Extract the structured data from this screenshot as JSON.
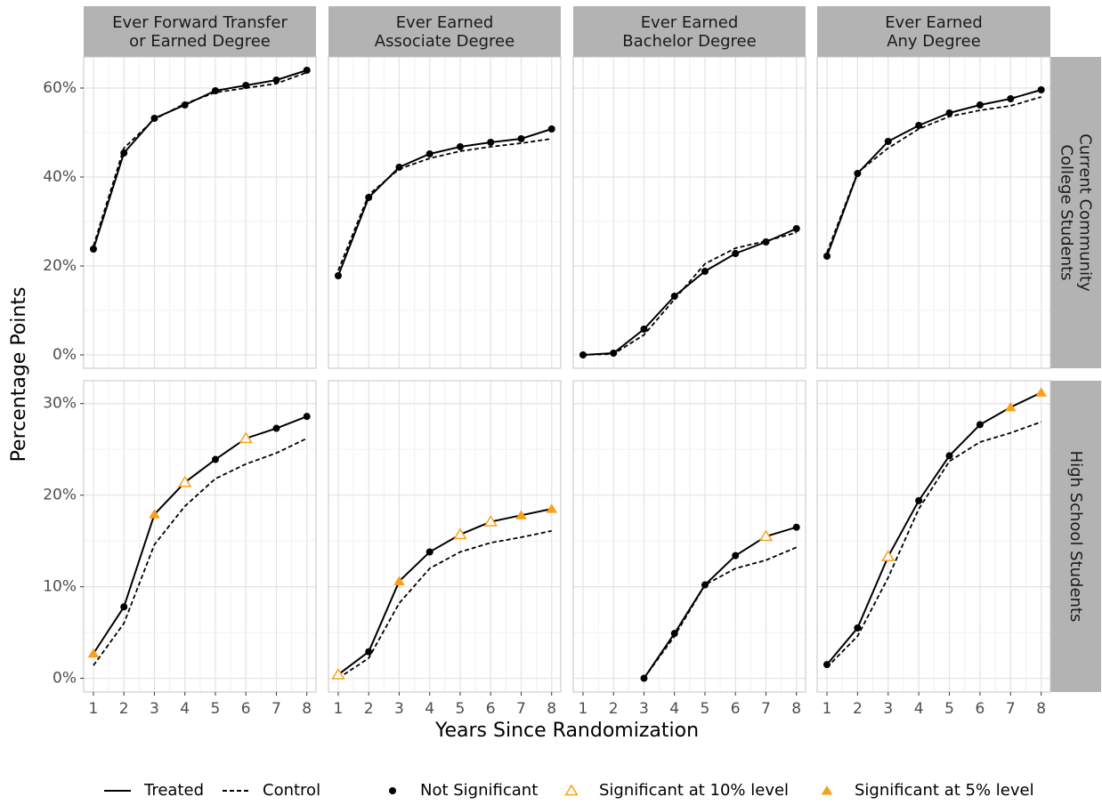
{
  "y_label": "Percentage Points",
  "x_label": "Years Since Randomization",
  "columns": [
    {
      "label": [
        "Ever Forward Transfer",
        "or Earned Degree"
      ]
    },
    {
      "label": [
        "Ever Earned",
        "Associate Degree"
      ]
    },
    {
      "label": [
        "Ever Earned",
        "Bachelor Degree"
      ]
    },
    {
      "label": [
        "Ever Earned",
        "Any Degree"
      ]
    }
  ],
  "rows": [
    {
      "label": [
        "Current Community",
        "College Students"
      ],
      "ylim": [
        -3,
        67
      ],
      "yticks": [
        {
          "value": 0,
          "label": "0%"
        },
        {
          "value": 20,
          "label": "20%"
        },
        {
          "value": 40,
          "label": "40%"
        },
        {
          "value": 60,
          "label": "60%"
        }
      ]
    },
    {
      "label": [
        "High School Students"
      ],
      "ylim": [
        -1.5,
        32.5
      ],
      "yticks": [
        {
          "value": 0,
          "label": "0%"
        },
        {
          "value": 10,
          "label": "10%"
        },
        {
          "value": 20,
          "label": "20%"
        },
        {
          "value": 30,
          "label": "30%"
        }
      ]
    }
  ],
  "xlim": [
    0.68,
    8.3
  ],
  "xticks": [
    1,
    2,
    3,
    4,
    5,
    6,
    7,
    8
  ],
  "grid": true,
  "accent_color": "#f8a01a",
  "legend": {
    "lines": [
      {
        "name": "Treated",
        "dash": "solid"
      },
      {
        "name": "Control",
        "dash": "dashed"
      }
    ],
    "markers": [
      {
        "name": "Not Significant",
        "shape": "circle"
      },
      {
        "name": "Significant at 10% level",
        "shape": "open-triangle"
      },
      {
        "name": "Significant at 5% level",
        "shape": "filled-triangle"
      }
    ]
  },
  "chart_data": [
    {
      "type": "line",
      "row": 0,
      "column": 0,
      "x": [
        1,
        2,
        3,
        4,
        5,
        6,
        7,
        8
      ],
      "treated": [
        23.8,
        45.4,
        53.2,
        56.2,
        59.4,
        60.6,
        61.8,
        64
      ],
      "control": [
        24.5,
        46.5,
        53,
        56.5,
        59,
        60,
        61,
        63.5
      ],
      "significance": [
        "circle",
        "circle",
        "circle",
        "circle",
        "circle",
        "circle",
        "circle",
        "circle"
      ]
    },
    {
      "type": "line",
      "row": 0,
      "column": 1,
      "x": [
        1,
        2,
        3,
        4,
        5,
        6,
        7,
        8
      ],
      "treated": [
        17.8,
        35.4,
        42.2,
        45.2,
        46.8,
        47.8,
        48.6,
        50.8
      ],
      "control": [
        19,
        36,
        41.8,
        44.2,
        45.8,
        46.8,
        47.6,
        48.6
      ],
      "significance": [
        "circle",
        "circle",
        "circle",
        "circle",
        "circle",
        "circle",
        "circle",
        "circle"
      ]
    },
    {
      "type": "line",
      "row": 0,
      "column": 2,
      "x": [
        1,
        2,
        3,
        4,
        5,
        6,
        7,
        8
      ],
      "treated": [
        0,
        0.4,
        5.8,
        13.2,
        18.8,
        22.8,
        25.4,
        28.4
      ],
      "control": [
        0,
        0.2,
        4.5,
        12.5,
        20.5,
        24,
        25.6,
        27.5
      ],
      "significance": [
        "circle",
        "circle",
        "circle",
        "circle",
        "circle",
        "circle",
        "circle",
        "circle"
      ]
    },
    {
      "type": "line",
      "row": 0,
      "column": 3,
      "x": [
        1,
        2,
        3,
        4,
        5,
        6,
        7,
        8
      ],
      "treated": [
        22.2,
        40.8,
        48,
        51.6,
        54.4,
        56.2,
        57.6,
        59.6
      ],
      "control": [
        23,
        41,
        46.5,
        50.8,
        53.6,
        55,
        56,
        58
      ],
      "significance": [
        "circle",
        "circle",
        "circle",
        "circle",
        "circle",
        "circle",
        "circle",
        "circle"
      ]
    },
    {
      "type": "line",
      "row": 1,
      "column": 0,
      "x": [
        1,
        2,
        3,
        4,
        5,
        6,
        7,
        8
      ],
      "treated": [
        2.7,
        7.8,
        17.9,
        21.4,
        23.9,
        26.2,
        27.3,
        28.6
      ],
      "control": [
        1.4,
        6.0,
        14.6,
        18.8,
        21.8,
        23.4,
        24.6,
        26.2
      ],
      "significance": [
        "filled-triangle",
        "circle",
        "filled-triangle",
        "open-triangle",
        "circle",
        "open-triangle",
        "circle",
        "circle"
      ]
    },
    {
      "type": "line",
      "row": 1,
      "column": 1,
      "x": [
        1,
        2,
        3,
        4,
        5,
        6,
        7,
        8
      ],
      "treated": [
        0.4,
        2.9,
        10.6,
        13.8,
        15.7,
        17.1,
        17.8,
        18.5
      ],
      "control": [
        0,
        2.2,
        8.2,
        12,
        13.8,
        14.8,
        15.4,
        16.1
      ],
      "significance": [
        "open-triangle",
        "circle",
        "filled-triangle",
        "circle",
        "open-triangle",
        "open-triangle",
        "filled-triangle",
        "filled-triangle"
      ]
    },
    {
      "type": "line",
      "row": 1,
      "column": 2,
      "x": [
        1,
        2,
        3,
        4,
        5,
        6,
        7,
        8
      ],
      "treated": [
        null,
        null,
        0,
        4.9,
        10.2,
        13.4,
        15.5,
        16.5
      ],
      "control": [
        null,
        null,
        0,
        4.6,
        10.2,
        12,
        12.9,
        14.3
      ],
      "significance": [
        null,
        null,
        "circle",
        "circle",
        "circle",
        "circle",
        "open-triangle",
        "circle"
      ]
    },
    {
      "type": "line",
      "row": 1,
      "column": 3,
      "x": [
        1,
        2,
        3,
        4,
        5,
        6,
        7,
        8
      ],
      "treated": [
        1.5,
        5.5,
        13.3,
        19.4,
        24.3,
        27.7,
        29.6,
        31.2
      ],
      "control": [
        1.2,
        4.6,
        11,
        18.5,
        23.7,
        25.8,
        26.8,
        28
      ],
      "significance": [
        "circle",
        "circle",
        "open-triangle",
        "circle",
        "circle",
        "circle",
        "filled-triangle",
        "filled-triangle"
      ]
    }
  ]
}
